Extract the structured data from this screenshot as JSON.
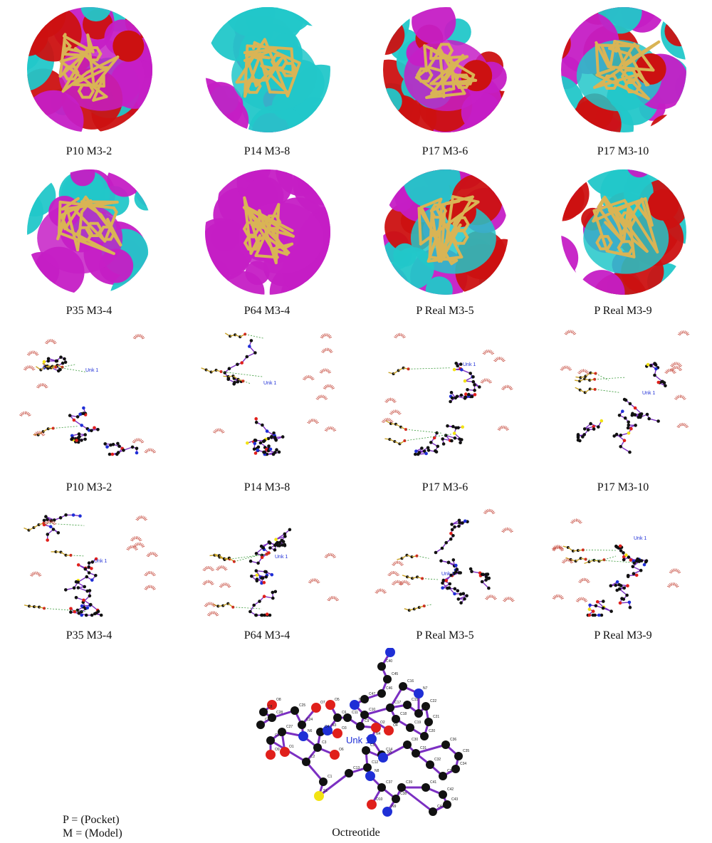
{
  "row_surface_top": [
    {
      "label": "P10 M3-2"
    },
    {
      "label": "P14 M3-8"
    },
    {
      "label": "P17 M3-6"
    },
    {
      "label": "P17 M3-10"
    }
  ],
  "row_surface_bottom": [
    {
      "label": "P35 M3-4"
    },
    {
      "label": "P64 M3-4"
    },
    {
      "label": "P Real M3-5"
    },
    {
      "label": "P Real M3-9"
    }
  ],
  "row_ligplot_top": [
    {
      "label": "P10 M3-2",
      "ligand": "Unk 1"
    },
    {
      "label": "P14 M3-8",
      "ligand": "Unk 1"
    },
    {
      "label": "P17 M3-6",
      "ligand": "Unk 1"
    },
    {
      "label": "P17 M3-10",
      "ligand": "Unk 1"
    }
  ],
  "row_ligplot_bottom": [
    {
      "label": "P35 M3-4",
      "ligand": "Unk 1"
    },
    {
      "label": "P64 M3-4",
      "ligand": "Unk 1"
    },
    {
      "label": "P Real M3-5",
      "ligand": "Unk 1"
    },
    {
      "label": "P Real M3-9",
      "ligand": "Unk 1"
    }
  ],
  "octreotide": {
    "ligand_label": "Unk 1",
    "caption": "Octreotide",
    "atom_labels": [
      "N10",
      "C40",
      "C45",
      "C46",
      "C47",
      "C16",
      "N7",
      "C15",
      "C17",
      "C22",
      "C21",
      "C18",
      "C19",
      "C20",
      "C23",
      "C24",
      "C25",
      "O7",
      "O5",
      "N1",
      "C9",
      "C10",
      "C11",
      "O2",
      "O4",
      "N4",
      "C14",
      "C6",
      "C8",
      "O8",
      "C28",
      "C29",
      "C26",
      "C27",
      "O9",
      "O1",
      "N6",
      "C3",
      "C4",
      "C2",
      "O6",
      "O3",
      "N3",
      "C1",
      "C13",
      "S1",
      "C12",
      "C5",
      "C36",
      "C35",
      "C34",
      "C33",
      "C32",
      "C31",
      "C30",
      "N5",
      "C37",
      "C38",
      "C39",
      "C41",
      "C42",
      "C43",
      "C44",
      "O10",
      "N8",
      "N9"
    ]
  },
  "legend": {
    "pocket": "P = (Pocket)",
    "model": "M = (Model)"
  },
  "colors": {
    "magenta": "#c51ec5",
    "cyan": "#22c7c9",
    "red": "#cc1111",
    "ligand_yellow": "#d9b455",
    "bond_purple": "#7b2fc2",
    "carbon": "#111111",
    "oxygen": "#e0201b",
    "nitrogen": "#1f2fd6",
    "sulfur": "#f2e313",
    "hbond_green": "#3a9a3a",
    "hydrophobic_red": "#c0392b"
  }
}
